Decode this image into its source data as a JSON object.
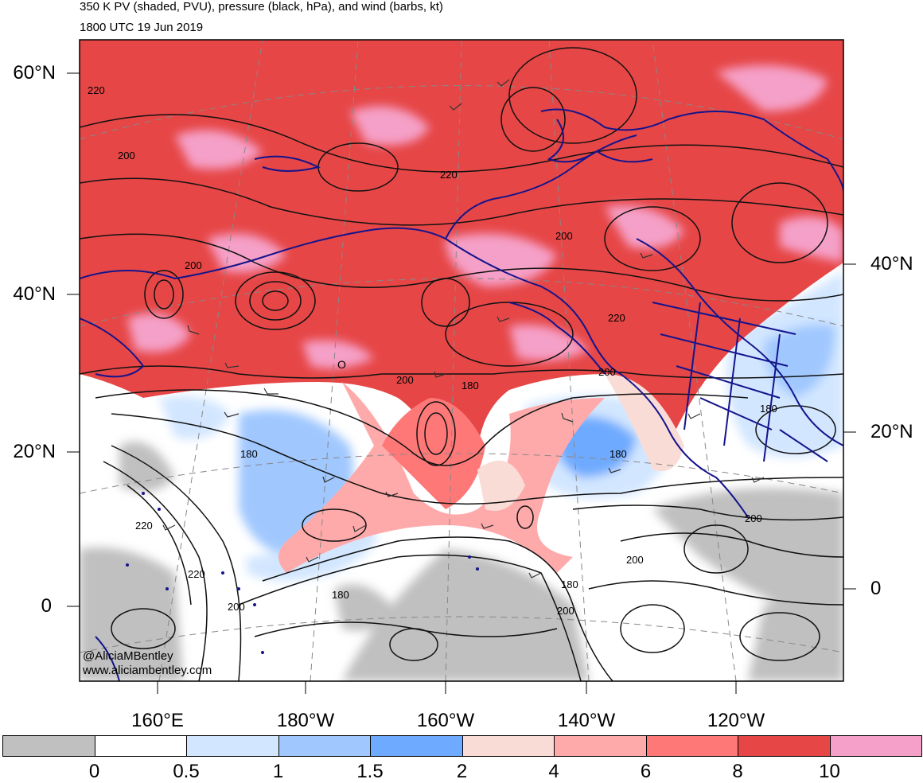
{
  "header": {
    "title": "350 K PV (shaded, PVU), pressure (black, hPa), and wind (barbs, kt)",
    "valid_time": "1800 UTC 19 Jun 2019"
  },
  "map": {
    "lat_labels_left": [
      "60°N",
      "40°N",
      "20°N",
      "0"
    ],
    "lat_labels_right": [
      "40°N",
      "20°N",
      "0"
    ],
    "lon_labels": [
      "160°E",
      "180°W",
      "160°W",
      "140°W",
      "120°W"
    ],
    "contour_labels": [
      "220",
      "200",
      "200",
      "220",
      "200",
      "200",
      "220",
      "200",
      "180",
      "180",
      "180",
      "180",
      "220",
      "220",
      "200",
      "180",
      "200",
      "200",
      "180",
      "200",
      "180"
    ],
    "low_marker": "O",
    "credit_lines": [
      "@AliciaMBentley",
      "www.aliciambentley.com"
    ],
    "colors": {
      "coast": "#14148c",
      "contour": "#111111"
    }
  },
  "colorbar": {
    "labels": [
      "0",
      "0.5",
      "1",
      "1.5",
      "2",
      "4",
      "6",
      "8",
      "10"
    ],
    "colors": [
      "#c0c0c0",
      "#ffffff",
      "#d2e6ff",
      "#a0c8ff",
      "#6eaaff",
      "#fadcd7",
      "#ffaaaa",
      "#ff7878",
      "#e64646",
      "#f5a0c8"
    ]
  }
}
